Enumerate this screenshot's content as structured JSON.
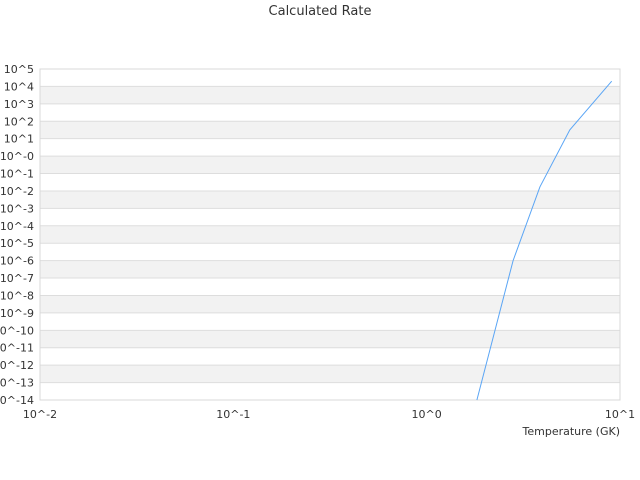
{
  "chart_data": {
    "type": "line",
    "title": "Calculated Rate",
    "xlabel": "Temperature (GK)",
    "ylabel": "",
    "x_scale": "log",
    "y_scale": "log",
    "xlim": [
      0.01,
      10
    ],
    "ylim": [
      1e-14,
      100000.0
    ],
    "grid": true,
    "x_ticks": [
      "10^-2",
      "10^-1",
      "10^0",
      "10^1"
    ],
    "y_ticks": [
      "10^5",
      "10^4",
      "10^3",
      "10^2",
      "10^1",
      "10^-0",
      "10^-1",
      "10^-2",
      "10^-3",
      "10^-4",
      "10^-5",
      "10^-6",
      "10^-7",
      "10^-8",
      "10^-9",
      "10^-10",
      "10^-11",
      "10^-12",
      "10^-13",
      "10^-14"
    ],
    "series": [
      {
        "color": "#5aa5f5",
        "x": [
          1.82,
          2.21,
          2.8,
          3.85,
          5.5,
          9.06
        ],
        "y": [
          1e-14,
          4e-11,
          1e-06,
          0.017,
          32.0,
          20000.0
        ]
      }
    ]
  }
}
